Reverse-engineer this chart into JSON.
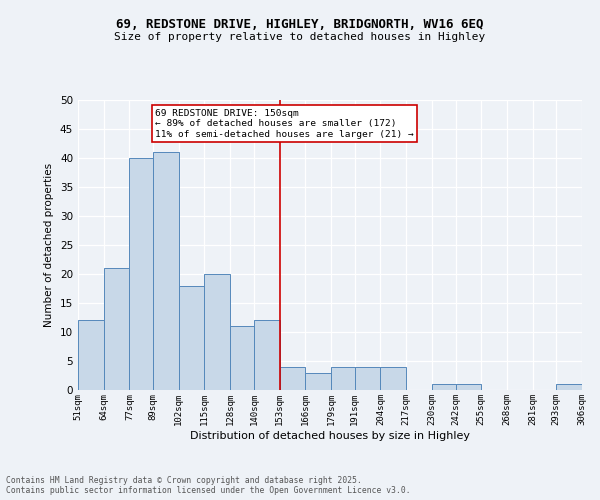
{
  "title_line1": "69, REDSTONE DRIVE, HIGHLEY, BRIDGNORTH, WV16 6EQ",
  "title_line2": "Size of property relative to detached houses in Highley",
  "xlabel": "Distribution of detached houses by size in Highley",
  "ylabel": "Number of detached properties",
  "bar_edges": [
    51,
    64,
    77,
    89,
    102,
    115,
    128,
    140,
    153,
    166,
    179,
    191,
    204,
    217,
    230,
    242,
    255,
    268,
    281,
    293,
    306
  ],
  "bar_heights": [
    12,
    21,
    40,
    41,
    18,
    20,
    11,
    12,
    4,
    3,
    4,
    4,
    4,
    0,
    1,
    1,
    0,
    0,
    0,
    1
  ],
  "bar_color": "#c8d8e8",
  "bar_edge_color": "#5588bb",
  "tick_labels": [
    "51sqm",
    "64sqm",
    "77sqm",
    "89sqm",
    "102sqm",
    "115sqm",
    "128sqm",
    "140sqm",
    "153sqm",
    "166sqm",
    "179sqm",
    "191sqm",
    "204sqm",
    "217sqm",
    "230sqm",
    "242sqm",
    "255sqm",
    "268sqm",
    "281sqm",
    "293sqm",
    "306sqm"
  ],
  "vline_x": 153,
  "vline_color": "#cc0000",
  "annotation_text": "69 REDSTONE DRIVE: 150sqm\n← 89% of detached houses are smaller (172)\n11% of semi-detached houses are larger (21) →",
  "annotation_box_color": "#ffffff",
  "annotation_box_edge": "#cc0000",
  "ylim": [
    0,
    50
  ],
  "yticks": [
    0,
    5,
    10,
    15,
    20,
    25,
    30,
    35,
    40,
    45,
    50
  ],
  "footer_text": "Contains HM Land Registry data © Crown copyright and database right 2025.\nContains public sector information licensed under the Open Government Licence v3.0.",
  "bg_color": "#eef2f7",
  "grid_color": "#ffffff"
}
